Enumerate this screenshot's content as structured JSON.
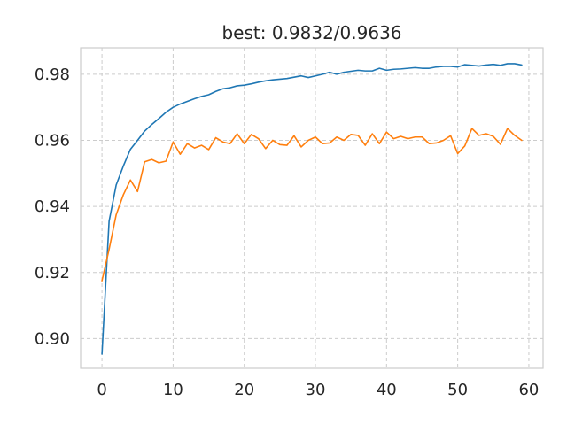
{
  "chart_data": {
    "type": "line",
    "title": "best: 0.9832/0.9636",
    "xlabel": "",
    "ylabel": "",
    "xlim": [
      -3,
      62
    ],
    "ylim": [
      0.891,
      0.988
    ],
    "xticks": [
      0,
      10,
      20,
      30,
      40,
      50,
      60
    ],
    "xtick_labels": [
      "0",
      "10",
      "20",
      "30",
      "40",
      "50",
      "60"
    ],
    "yticks": [
      0.9,
      0.92,
      0.94,
      0.96,
      0.98
    ],
    "ytick_labels": [
      "0.90",
      "0.92",
      "0.94",
      "0.96",
      "0.98"
    ],
    "grid": true,
    "x": [
      0,
      1,
      2,
      3,
      4,
      5,
      6,
      7,
      8,
      9,
      10,
      11,
      12,
      13,
      14,
      15,
      16,
      17,
      18,
      19,
      20,
      21,
      22,
      23,
      24,
      25,
      26,
      27,
      28,
      29,
      30,
      31,
      32,
      33,
      34,
      35,
      36,
      37,
      38,
      39,
      40,
      41,
      42,
      43,
      44,
      45,
      46,
      47,
      48,
      49,
      50,
      51,
      52,
      53,
      54,
      55,
      56,
      57,
      58,
      59
    ],
    "series": [
      {
        "color": "#1f77b4",
        "values": [
          0.8953,
          0.9355,
          0.9465,
          0.9522,
          0.9573,
          0.96,
          0.9628,
          0.9648,
          0.9666,
          0.9685,
          0.97,
          0.971,
          0.9718,
          0.9726,
          0.9733,
          0.9738,
          0.9748,
          0.9756,
          0.9759,
          0.9765,
          0.9767,
          0.9771,
          0.9776,
          0.978,
          0.9783,
          0.9785,
          0.9787,
          0.9791,
          0.9795,
          0.979,
          0.9795,
          0.98,
          0.9806,
          0.98,
          0.9806,
          0.9809,
          0.9812,
          0.981,
          0.981,
          0.9818,
          0.9812,
          0.9815,
          0.9816,
          0.9818,
          0.982,
          0.9818,
          0.9818,
          0.9822,
          0.9824,
          0.9824,
          0.9822,
          0.9829,
          0.9827,
          0.9825,
          0.9828,
          0.983,
          0.9827,
          0.9832,
          0.9832,
          0.9828
        ]
      },
      {
        "color": "#ff7f0e",
        "values": [
          0.9175,
          0.927,
          0.9375,
          0.9435,
          0.948,
          0.9445,
          0.9535,
          0.9542,
          0.9532,
          0.9537,
          0.9595,
          0.9558,
          0.959,
          0.9577,
          0.9585,
          0.9572,
          0.9608,
          0.9595,
          0.959,
          0.962,
          0.959,
          0.9618,
          0.9605,
          0.9575,
          0.96,
          0.9587,
          0.9585,
          0.9614,
          0.958,
          0.96,
          0.961,
          0.959,
          0.9592,
          0.961,
          0.96,
          0.9618,
          0.9615,
          0.9585,
          0.962,
          0.959,
          0.9625,
          0.9605,
          0.9612,
          0.9605,
          0.961,
          0.961,
          0.959,
          0.9592,
          0.96,
          0.9614,
          0.956,
          0.9583,
          0.9636,
          0.9615,
          0.962,
          0.9612,
          0.9588,
          0.9636,
          0.9615,
          0.96
        ]
      }
    ]
  }
}
